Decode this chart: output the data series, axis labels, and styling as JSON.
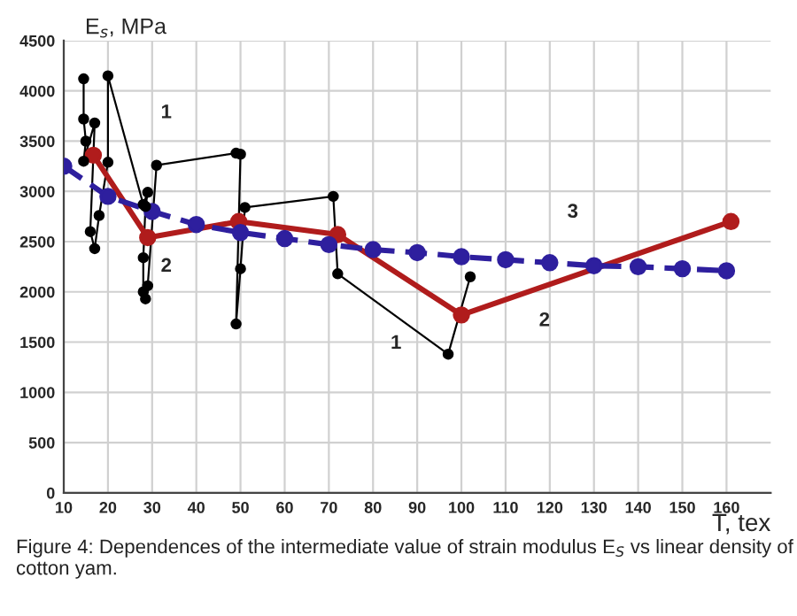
{
  "chart_data": {
    "type": "line",
    "ylabel": "E$_{s}$, MPa",
    "xlabel": "T, tex",
    "xlim": [
      10,
      170
    ],
    "xticks": [
      10,
      20,
      30,
      40,
      50,
      60,
      70,
      80,
      90,
      100,
      110,
      120,
      130,
      140,
      150,
      160
    ],
    "ylim": [
      0,
      4500
    ],
    "yticks": [
      0,
      500,
      1000,
      1500,
      2000,
      2500,
      3000,
      3500,
      4000,
      4500
    ],
    "grid": true,
    "marker": "circle",
    "series": [
      {
        "color": "#000000",
        "line_style": "solid",
        "x": [
          14.5,
          14.5,
          15,
          14.5,
          17,
          16,
          17,
          18,
          20,
          20,
          28,
          29,
          28.5,
          28,
          28,
          28.5,
          29,
          31,
          49,
          50,
          49,
          50,
          51,
          71,
          72,
          97,
          102
        ],
        "values": [
          4120,
          3720,
          3500,
          3300,
          3680,
          2600,
          2430,
          2760,
          3290,
          4150,
          2870,
          2990,
          2850,
          2340,
          2000,
          1930,
          2060,
          3260,
          3380,
          3370,
          1680,
          2230,
          2840,
          2950,
          2180,
          1380,
          2150
        ]
      },
      {
        "color": "#b01c1c",
        "line_style": "solid",
        "x": [
          16.7,
          29,
          49.6,
          72,
          100,
          161
        ],
        "values": [
          3360,
          2540,
          2700,
          2570,
          1770,
          2700
        ]
      },
      {
        "color": "#2e1f9e",
        "line_style": "dashed",
        "x": [
          10,
          20,
          30,
          40,
          50,
          60,
          70,
          80,
          90,
          100,
          110,
          120,
          130,
          140,
          150,
          160
        ],
        "values": [
          3250,
          2950,
          2800,
          2670,
          2590,
          2530,
          2470,
          2420,
          2390,
          2350,
          2320,
          2290,
          2260,
          2250,
          2230,
          2210
        ]
      }
    ],
    "annotations": [
      "1",
      "1",
      "2",
      "2",
      "3",
      "Figure 4: Dependences of the intermediate value of strain modulus E$_{S}$ vs linear density of cotton yam."
    ]
  }
}
